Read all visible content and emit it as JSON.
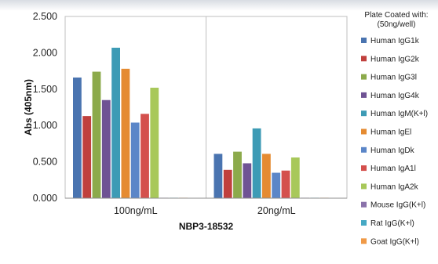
{
  "chart_data": {
    "type": "bar",
    "title": "",
    "xlabel": "NBP3-18532",
    "ylabel": "Abs (405nm)",
    "ylim": [
      0,
      2.5
    ],
    "yticks": [
      "0.000",
      "0.500",
      "1.000",
      "1.500",
      "2.000",
      "2.500"
    ],
    "grid": false,
    "legend_position": "right",
    "legend_title": [
      "Plate Coated with:",
      "(50ng/well)"
    ],
    "categories": [
      "100ng/mL",
      "20ng/mL"
    ],
    "series": [
      {
        "name": "Human IgG1k",
        "color": "#4a74b0",
        "values": [
          1.66,
          0.61
        ]
      },
      {
        "name": "Human IgG2k",
        "color": "#c0403d",
        "values": [
          1.13,
          0.39
        ]
      },
      {
        "name": "Human IgG3l",
        "color": "#8caa4b",
        "values": [
          1.74,
          0.64
        ]
      },
      {
        "name": "Human IgG4k",
        "color": "#6f5394",
        "values": [
          1.35,
          0.48
        ]
      },
      {
        "name": "Human IgM(K+l)",
        "color": "#3d9bb5",
        "values": [
          2.07,
          0.96
        ]
      },
      {
        "name": "Human IgEl",
        "color": "#e58b32",
        "values": [
          1.78,
          0.61
        ]
      },
      {
        "name": "Human IgDk",
        "color": "#5b86c8",
        "values": [
          1.04,
          0.35
        ]
      },
      {
        "name": "Human IgA1l",
        "color": "#d4504d",
        "values": [
          1.16,
          0.38
        ]
      },
      {
        "name": "Human IgA2k",
        "color": "#a8c85a",
        "values": [
          1.52,
          0.56
        ]
      },
      {
        "name": "Mouse IgG(K+l)",
        "color": "#8a72aa",
        "values": [
          0.0,
          0.0
        ]
      },
      {
        "name": "Rat IgG(K+l)",
        "color": "#46a9c4",
        "values": [
          0.0,
          0.0
        ]
      },
      {
        "name": "Goat IgG(K+l)",
        "color": "#f09a47",
        "values": [
          0.0,
          0.0
        ]
      }
    ]
  }
}
